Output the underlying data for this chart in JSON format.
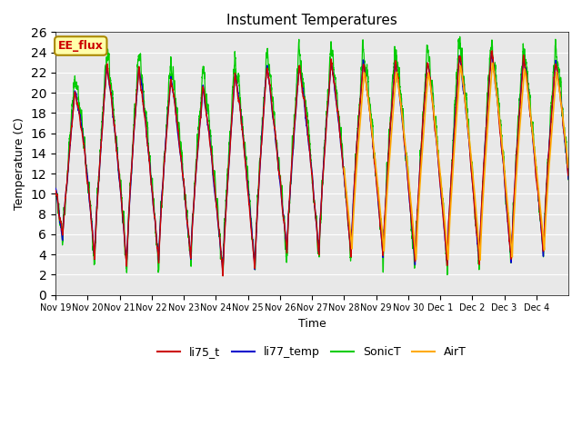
{
  "title": "Instument Temperatures",
  "xlabel": "Time",
  "ylabel": "Temperature (C)",
  "ylim": [
    0,
    26
  ],
  "yticks": [
    0,
    2,
    4,
    6,
    8,
    10,
    12,
    14,
    16,
    18,
    20,
    22,
    24,
    26
  ],
  "colors": {
    "li75_t": "#cc0000",
    "li77_temp": "#0000cc",
    "SonicT": "#00cc00",
    "AirT": "#ffaa00"
  },
  "annotation": {
    "text": "EE_flux",
    "facecolor": "#ffffaa",
    "edgecolor": "#aa8800"
  },
  "background_color": "#ffffff",
  "plot_bg_color": "#e8e8e8",
  "grid_color": "#ffffff",
  "xtick_labels": [
    "Nov 19",
    "Nov 20",
    "Nov 21",
    "Nov 22",
    "Nov 23",
    "Nov 24",
    "Nov 25",
    "Nov 26",
    "Nov 27",
    "Nov 28",
    "Nov 29",
    "Nov 30",
    "Dec 1",
    "Dec 2",
    "Dec 3",
    "Dec 4"
  ],
  "legend_labels": [
    "li75_t",
    "li77_temp",
    "SonicT",
    "AirT"
  ]
}
